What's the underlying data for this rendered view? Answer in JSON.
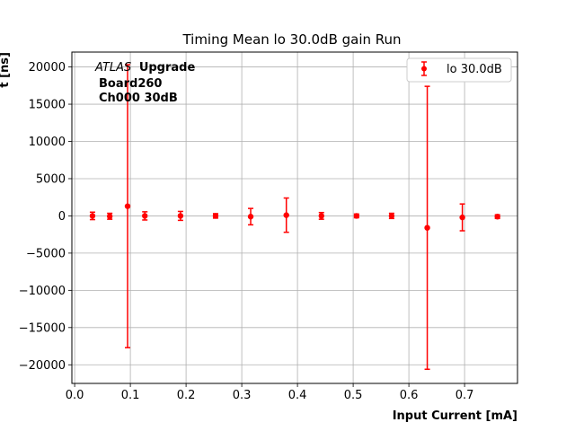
{
  "chart_data": {
    "type": "scatter",
    "title": "Timing Mean lo 30.0dB gain Run",
    "xlabel": "Input Current [mA]",
    "ylabel": "t [ns]",
    "xlim": [
      -0.005,
      0.795
    ],
    "ylim": [
      -22500,
      22000
    ],
    "xticks": [
      0.0,
      0.1,
      0.2,
      0.3,
      0.4,
      0.5,
      0.6,
      0.7
    ],
    "xtick_labels": [
      "0.0",
      "0.1",
      "0.2",
      "0.3",
      "0.4",
      "0.5",
      "0.6",
      "0.7"
    ],
    "yticks": [
      -20000,
      -15000,
      -10000,
      -5000,
      0,
      5000,
      10000,
      15000,
      20000
    ],
    "ytick_labels": [
      "−20000",
      "−15000",
      "−10000",
      "−5000",
      "0",
      "5000",
      "10000",
      "15000",
      "20000"
    ],
    "grid": true,
    "legend_position": "top-right",
    "series": [
      {
        "name": "lo 30.0dB",
        "color": "#ff0000",
        "x": [
          0.032,
          0.063,
          0.095,
          0.126,
          0.19,
          0.253,
          0.316,
          0.38,
          0.443,
          0.506,
          0.569,
          0.633,
          0.696,
          0.759
        ],
        "y": [
          0,
          -50,
          1300,
          0,
          0,
          0,
          -100,
          100,
          0,
          0,
          0,
          -1600,
          -200,
          -100
        ],
        "yerr": [
          500,
          400,
          19000,
          550,
          600,
          300,
          1100,
          2300,
          450,
          250,
          350,
          19000,
          1800,
          250
        ]
      }
    ],
    "annotations": {
      "atlas": "ATLAS",
      "upgrade": "Upgrade",
      "board": "Board260",
      "channel": "Ch000 30dB"
    }
  }
}
